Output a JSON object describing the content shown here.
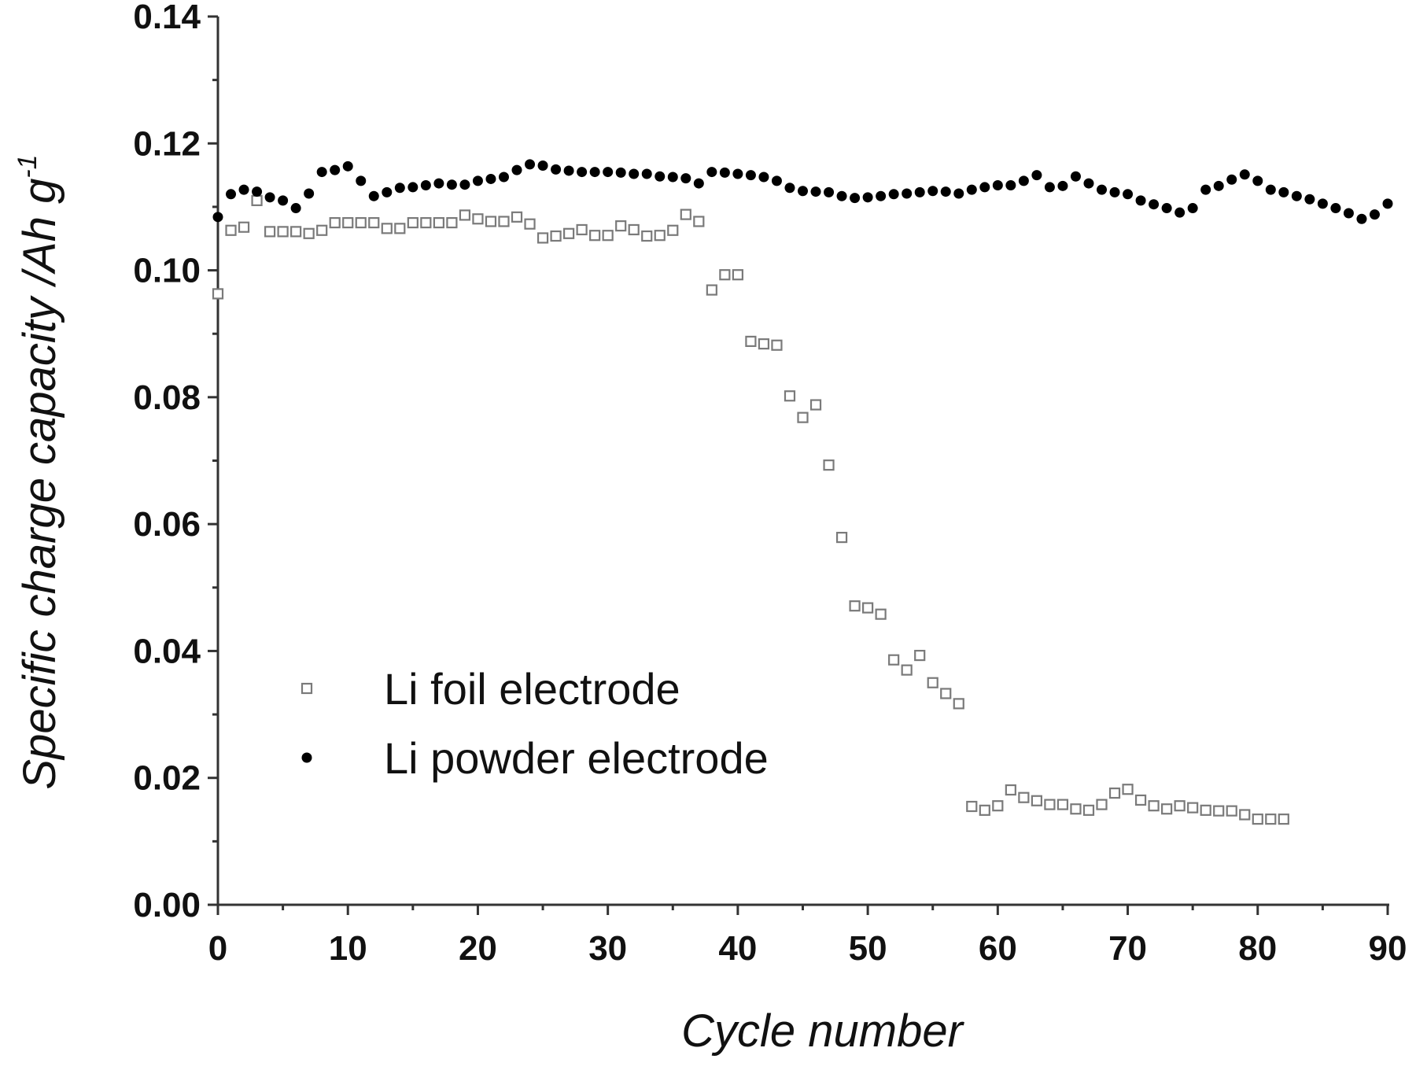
{
  "chart_data": {
    "type": "scatter",
    "xlabel": "Cycle number",
    "ylabel": "Specific charge capacity /Ah g",
    "ylabel_superscript": "-1",
    "xlim": [
      0,
      90
    ],
    "xticks": [
      0,
      10,
      20,
      30,
      40,
      50,
      60,
      70,
      80,
      90
    ],
    "ylim": [
      0,
      0.14
    ],
    "yticks": [
      {
        "value": 0,
        "label": "0.00"
      },
      {
        "value": 0.02,
        "label": "0.02"
      },
      {
        "value": 0.04,
        "label": "0.04"
      },
      {
        "value": 0.06,
        "label": "0.06"
      },
      {
        "value": 0.08,
        "label": "0.08"
      },
      {
        "value": 0.1,
        "label": "0.10"
      },
      {
        "value": 0.12,
        "label": "0.12"
      },
      {
        "value": 0.14,
        "label": "0.14"
      }
    ],
    "legend": "lower-left",
    "series": [
      {
        "name": "Li foil electrode",
        "color": "#7a7a7a",
        "marker": "square-open",
        "x": [
          0,
          1,
          2,
          3,
          4,
          5,
          6,
          7,
          8,
          9,
          10,
          11,
          12,
          13,
          14,
          15,
          16,
          17,
          18,
          19,
          20,
          21,
          22,
          23,
          24,
          25,
          26,
          27,
          28,
          29,
          30,
          31,
          32,
          33,
          34,
          35,
          36,
          37,
          38,
          39,
          40,
          41,
          42,
          43,
          44,
          45,
          46,
          47,
          48,
          49,
          50,
          51,
          52,
          53,
          54,
          55,
          56,
          57,
          58,
          59,
          60,
          61,
          62,
          63,
          64,
          65,
          66,
          67,
          68,
          69,
          70,
          71,
          72,
          73,
          74,
          75,
          76,
          77,
          78,
          79,
          80,
          81,
          82
        ],
        "values": [
          0.0963,
          0.1063,
          0.1068,
          0.111,
          0.1061,
          0.1061,
          0.1061,
          0.1058,
          0.1063,
          0.1075,
          0.1075,
          0.1075,
          0.1075,
          0.1066,
          0.1066,
          0.1075,
          0.1075,
          0.1075,
          0.1075,
          0.1087,
          0.1081,
          0.1077,
          0.1077,
          0.1084,
          0.1073,
          0.1051,
          0.1054,
          0.1058,
          0.1064,
          0.1055,
          0.1055,
          0.107,
          0.1064,
          0.1054,
          0.1055,
          0.1063,
          0.1088,
          0.1077,
          0.0969,
          0.0993,
          0.0993,
          0.0888,
          0.0884,
          0.0882,
          0.0802,
          0.0768,
          0.0788,
          0.0693,
          0.0579,
          0.0471,
          0.0468,
          0.0458,
          0.0386,
          0.037,
          0.0393,
          0.035,
          0.0333,
          0.0317,
          0.0155,
          0.0149,
          0.0156,
          0.0181,
          0.0169,
          0.0164,
          0.0158,
          0.0158,
          0.0151,
          0.0149,
          0.0158,
          0.0176,
          0.0182,
          0.0165,
          0.0156,
          0.0151,
          0.0156,
          0.0153,
          0.0149,
          0.0148,
          0.0148,
          0.0142,
          0.0135,
          0.0135,
          0.0135
        ]
      },
      {
        "name": "Li powder electrode",
        "color": "#000000",
        "marker": "circle",
        "x": [
          0,
          1,
          2,
          3,
          4,
          5,
          6,
          7,
          8,
          9,
          10,
          11,
          12,
          13,
          14,
          15,
          16,
          17,
          18,
          19,
          20,
          21,
          22,
          23,
          24,
          25,
          26,
          27,
          28,
          29,
          30,
          31,
          32,
          33,
          34,
          35,
          36,
          37,
          38,
          39,
          40,
          41,
          42,
          43,
          44,
          45,
          46,
          47,
          48,
          49,
          50,
          51,
          52,
          53,
          54,
          55,
          56,
          57,
          58,
          59,
          60,
          61,
          62,
          63,
          64,
          65,
          66,
          67,
          68,
          69,
          70,
          71,
          72,
          73,
          74,
          75,
          76,
          77,
          78,
          79,
          80,
          81,
          82,
          83,
          84,
          85,
          86,
          87,
          88,
          89,
          90
        ],
        "values": [
          0.1084,
          0.112,
          0.1127,
          0.1124,
          0.1115,
          0.111,
          0.1098,
          0.1121,
          0.1155,
          0.1158,
          0.1164,
          0.1141,
          0.1117,
          0.1123,
          0.113,
          0.1131,
          0.1134,
          0.1137,
          0.1135,
          0.1135,
          0.1141,
          0.1144,
          0.1147,
          0.1158,
          0.1167,
          0.1165,
          0.1159,
          0.1157,
          0.1155,
          0.1155,
          0.1155,
          0.1154,
          0.1152,
          0.1152,
          0.1148,
          0.1147,
          0.1145,
          0.1137,
          0.1155,
          0.1154,
          0.1152,
          0.115,
          0.1147,
          0.1141,
          0.113,
          0.1125,
          0.1124,
          0.1123,
          0.1117,
          0.1114,
          0.1115,
          0.1117,
          0.112,
          0.1121,
          0.1123,
          0.1125,
          0.1124,
          0.1121,
          0.1127,
          0.1131,
          0.1134,
          0.1134,
          0.1141,
          0.115,
          0.1131,
          0.1133,
          0.1148,
          0.1137,
          0.1127,
          0.1123,
          0.112,
          0.111,
          0.1104,
          0.1098,
          0.1091,
          0.1098,
          0.1127,
          0.1133,
          0.1143,
          0.1151,
          0.1141,
          0.1127,
          0.1123,
          0.1117,
          0.1112,
          0.1105,
          0.1098,
          0.109,
          0.1081,
          0.1088,
          0.1105
        ]
      }
    ]
  }
}
